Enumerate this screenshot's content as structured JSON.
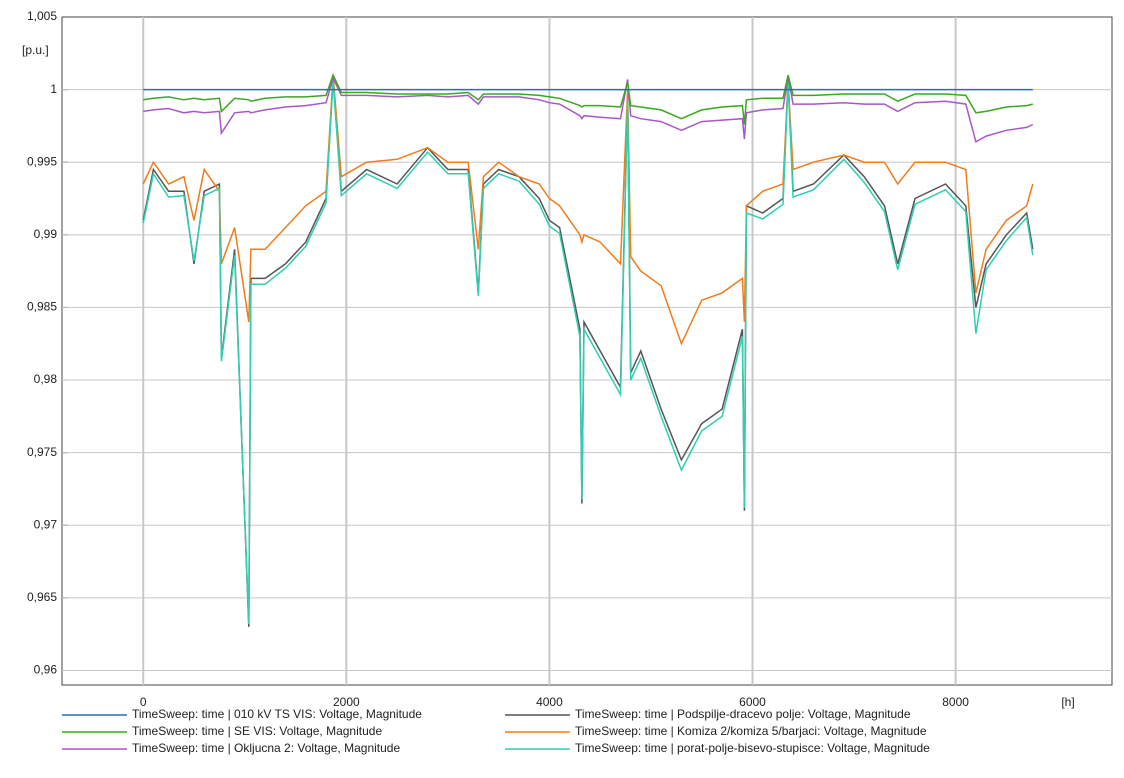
{
  "chart_data": {
    "type": "line",
    "x_label": "[h]",
    "y_label": "[p.u.]",
    "xlim": [
      -800,
      9540
    ],
    "ylim": [
      0.959,
      1.005
    ],
    "xticks": [
      0,
      2000,
      4000,
      6000,
      8000
    ],
    "yticks": [
      {
        "value": 0.96,
        "label": "0,96"
      },
      {
        "value": 0.965,
        "label": "0,965"
      },
      {
        "value": 0.97,
        "label": "0,97"
      },
      {
        "value": 0.975,
        "label": "0,975"
      },
      {
        "value": 0.98,
        "label": "0,98"
      },
      {
        "value": 0.985,
        "label": "0,985"
      },
      {
        "value": 0.99,
        "label": "0,99"
      },
      {
        "value": 0.995,
        "label": "0,995"
      },
      1,
      {
        "value": 1.005,
        "label": "1,005"
      }
    ],
    "grid": true,
    "x": [
      0,
      100,
      250,
      400,
      500,
      600,
      750,
      770,
      900,
      1040,
      1060,
      1200,
      1400,
      1600,
      1800,
      1870,
      1950,
      2200,
      2500,
      2800,
      3000,
      3200,
      3300,
      3350,
      3500,
      3700,
      3900,
      4000,
      4100,
      4300,
      4320,
      4340,
      4500,
      4700,
      4770,
      4800,
      4900,
      5100,
      5300,
      5500,
      5700,
      5900,
      5920,
      5940,
      6100,
      6300,
      6350,
      6400,
      6600,
      6900,
      7100,
      7300,
      7430,
      7600,
      7900,
      8100,
      8200,
      8300,
      8500,
      8700,
      8760
    ],
    "series": [
      {
        "name": "TimeSweep: time | 010 kV TS VIS: Voltage, Magnitude",
        "color": "#2b6cb8",
        "values": [
          1,
          1,
          1,
          1,
          1,
          1,
          1,
          1,
          1,
          1,
          1,
          1,
          1,
          1,
          1,
          1,
          1,
          1,
          1,
          1,
          1,
          1,
          1,
          1,
          1,
          1,
          1,
          1,
          1,
          1,
          1,
          1,
          1,
          1,
          1,
          1,
          1,
          1,
          1,
          1,
          1,
          1,
          1,
          1,
          1,
          1,
          1,
          1,
          1,
          1,
          1,
          1,
          1,
          1,
          1,
          1,
          1,
          1,
          1,
          1,
          1
        ]
      },
      {
        "name": "TimeSweep: time | SE VIS: Voltage, Magnitude",
        "color": "#3aa81f",
        "values": [
          0.9993,
          0.9994,
          0.9995,
          0.9993,
          0.9994,
          0.9993,
          0.9994,
          0.9985,
          0.9994,
          0.9993,
          0.9992,
          0.9994,
          0.9995,
          0.9995,
          0.9996,
          1.001,
          0.9998,
          0.9998,
          0.9997,
          0.9997,
          0.9997,
          0.9998,
          0.9993,
          0.9997,
          0.9997,
          0.9997,
          0.9996,
          0.9995,
          0.9994,
          0.9989,
          0.9988,
          0.9989,
          0.9989,
          0.9988,
          1.0005,
          0.9989,
          0.9988,
          0.9986,
          0.998,
          0.9986,
          0.9988,
          0.9989,
          0.9976,
          0.9993,
          0.9994,
          0.9994,
          1.001,
          0.9996,
          0.9996,
          0.9997,
          0.9997,
          0.9997,
          0.9992,
          0.9997,
          0.9997,
          0.9996,
          0.9984,
          0.9985,
          0.9988,
          0.9989,
          0.999
        ]
      },
      {
        "name": "TimeSweep: time | Okljucna 2: Voltage, Magnitude",
        "color": "#a857c9",
        "values": [
          0.9985,
          0.9986,
          0.9987,
          0.9984,
          0.9985,
          0.9984,
          0.9985,
          0.997,
          0.9984,
          0.9985,
          0.9984,
          0.9986,
          0.9988,
          0.9989,
          0.9991,
          1.0008,
          0.9996,
          0.9996,
          0.9995,
          0.9996,
          0.9995,
          0.9996,
          0.999,
          0.9995,
          0.9995,
          0.9995,
          0.9993,
          0.9991,
          0.999,
          0.9982,
          0.998,
          0.9982,
          0.9981,
          0.998,
          1.0007,
          0.9982,
          0.998,
          0.9978,
          0.9972,
          0.9978,
          0.9979,
          0.998,
          0.9966,
          0.9984,
          0.9986,
          0.9987,
          1.0009,
          0.999,
          0.999,
          0.9991,
          0.999,
          0.999,
          0.9985,
          0.9991,
          0.9992,
          0.999,
          0.9964,
          0.9968,
          0.9972,
          0.9974,
          0.9976
        ]
      },
      {
        "name": "TimeSweep: time | Podspilje-dracevo polje: Voltage, Magnitude",
        "color": "#555555",
        "values": [
          0.991,
          0.9945,
          0.993,
          0.993,
          0.988,
          0.993,
          0.9935,
          0.9815,
          0.989,
          0.963,
          0.987,
          0.987,
          0.988,
          0.9895,
          0.9925,
          1.0008,
          0.993,
          0.9945,
          0.9935,
          0.996,
          0.9945,
          0.9945,
          0.986,
          0.9935,
          0.9945,
          0.994,
          0.9925,
          0.991,
          0.9905,
          0.9835,
          0.9715,
          0.984,
          0.982,
          0.9795,
          0.9995,
          0.9805,
          0.982,
          0.978,
          0.9745,
          0.977,
          0.978,
          0.9835,
          0.971,
          0.992,
          0.9915,
          0.9925,
          1.0007,
          0.993,
          0.9935,
          0.9955,
          0.994,
          0.992,
          0.988,
          0.9925,
          0.9935,
          0.992,
          0.985,
          0.988,
          0.99,
          0.9915,
          0.989
        ]
      },
      {
        "name": "TimeSweep: time | Komiza 2/komiza 5/barjaci: Voltage, Magnitude",
        "color": "#f07c1a",
        "values": [
          0.9935,
          0.995,
          0.9935,
          0.994,
          0.991,
          0.9945,
          0.993,
          0.988,
          0.9905,
          0.984,
          0.989,
          0.989,
          0.9905,
          0.992,
          0.993,
          1.001,
          0.994,
          0.995,
          0.9952,
          0.996,
          0.995,
          0.995,
          0.989,
          0.994,
          0.995,
          0.994,
          0.9935,
          0.9925,
          0.992,
          0.99,
          0.9895,
          0.99,
          0.9895,
          0.988,
          1.0,
          0.9885,
          0.9875,
          0.9865,
          0.9825,
          0.9855,
          0.986,
          0.987,
          0.984,
          0.992,
          0.993,
          0.9935,
          1.0005,
          0.9945,
          0.995,
          0.9955,
          0.995,
          0.995,
          0.9935,
          0.995,
          0.995,
          0.9945,
          0.986,
          0.989,
          0.991,
          0.992,
          0.9935
        ]
      },
      {
        "name": "TimeSweep: time | porat-polje-bisevo-stupisce: Voltage, Magnitude",
        "color": "#2fcfb0",
        "values": [
          0.9908,
          0.9942,
          0.9926,
          0.9927,
          0.9882,
          0.9927,
          0.9932,
          0.9813,
          0.9886,
          0.9632,
          0.9866,
          0.9866,
          0.9877,
          0.9892,
          0.9922,
          1.0006,
          0.9927,
          0.9942,
          0.9932,
          0.9957,
          0.9942,
          0.9942,
          0.9858,
          0.9932,
          0.9942,
          0.9937,
          0.9921,
          0.9906,
          0.9901,
          0.983,
          0.9718,
          0.9835,
          0.9815,
          0.979,
          0.9993,
          0.98,
          0.9815,
          0.9775,
          0.9738,
          0.9765,
          0.9775,
          0.983,
          0.9712,
          0.9915,
          0.9911,
          0.9921,
          1.0005,
          0.9926,
          0.9931,
          0.9952,
          0.9936,
          0.9916,
          0.9876,
          0.9921,
          0.9931,
          0.9916,
          0.9832,
          0.9876,
          0.9896,
          0.9912,
          0.9886
        ]
      }
    ]
  }
}
